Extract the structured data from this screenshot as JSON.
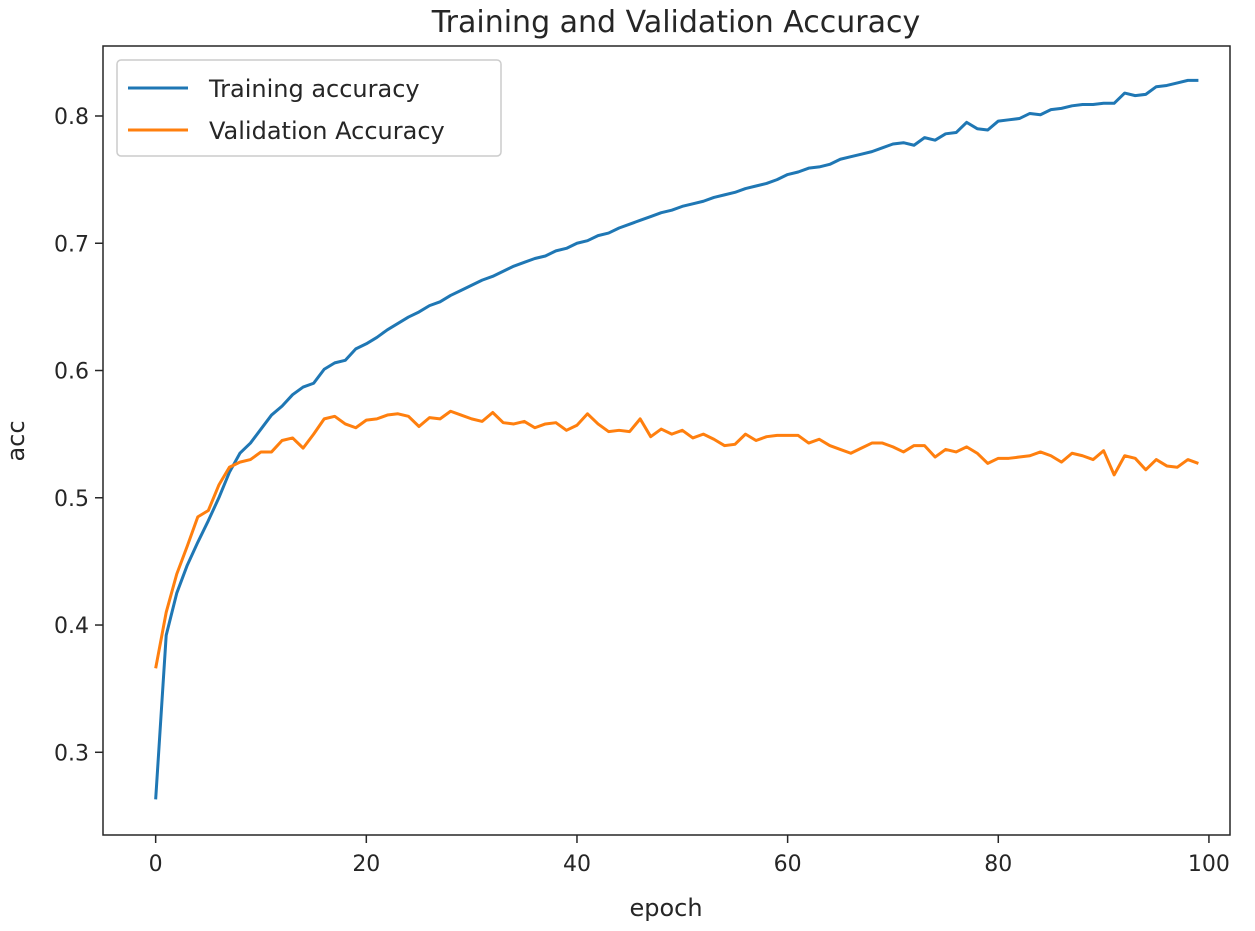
{
  "chart_data": {
    "type": "line",
    "title": "Training and Validation Accuracy",
    "xlabel": "epoch",
    "ylabel": "acc",
    "xlim": [
      -5,
      102
    ],
    "ylim": [
      0.235,
      0.855
    ],
    "xticks": [
      0,
      20,
      40,
      60,
      80,
      100
    ],
    "yticks": [
      0.3,
      0.4,
      0.5,
      0.6,
      0.7,
      0.8
    ],
    "xtick_labels": [
      "0",
      "20",
      "40",
      "60",
      "80",
      "100"
    ],
    "ytick_labels": [
      "0.3",
      "0.4",
      "0.5",
      "0.6",
      "0.7",
      "0.8"
    ],
    "grid": false,
    "legend_position": "upper-left",
    "x": [
      0,
      1,
      2,
      3,
      4,
      5,
      6,
      7,
      8,
      9,
      10,
      11,
      12,
      13,
      14,
      15,
      16,
      17,
      18,
      19,
      20,
      21,
      22,
      23,
      24,
      25,
      26,
      27,
      28,
      29,
      30,
      31,
      32,
      33,
      34,
      35,
      36,
      37,
      38,
      39,
      40,
      41,
      42,
      43,
      44,
      45,
      46,
      47,
      48,
      49,
      50,
      51,
      52,
      53,
      54,
      55,
      56,
      57,
      58,
      59,
      60,
      61,
      62,
      63,
      64,
      65,
      66,
      67,
      68,
      69,
      70,
      71,
      72,
      73,
      74,
      75,
      76,
      77,
      78,
      79,
      80,
      81,
      82,
      83,
      84,
      85,
      86,
      87,
      88,
      89,
      90,
      91,
      92,
      93,
      94,
      95,
      96,
      97,
      98,
      99
    ],
    "series": [
      {
        "name": "Training accuracy",
        "color": "#1f77b4",
        "values": [
          0.263,
          0.392,
          0.425,
          0.447,
          0.465,
          0.482,
          0.5,
          0.52,
          0.535,
          0.543,
          0.554,
          0.565,
          0.572,
          0.581,
          0.587,
          0.59,
          0.601,
          0.606,
          0.608,
          0.617,
          0.621,
          0.626,
          0.632,
          0.637,
          0.642,
          0.646,
          0.651,
          0.654,
          0.659,
          0.663,
          0.667,
          0.671,
          0.674,
          0.678,
          0.682,
          0.685,
          0.688,
          0.69,
          0.694,
          0.696,
          0.7,
          0.702,
          0.706,
          0.708,
          0.712,
          0.715,
          0.718,
          0.721,
          0.724,
          0.726,
          0.729,
          0.731,
          0.733,
          0.736,
          0.738,
          0.74,
          0.743,
          0.745,
          0.747,
          0.75,
          0.754,
          0.756,
          0.759,
          0.76,
          0.762,
          0.766,
          0.768,
          0.77,
          0.772,
          0.775,
          0.778,
          0.779,
          0.777,
          0.783,
          0.781,
          0.786,
          0.787,
          0.795,
          0.79,
          0.789,
          0.796,
          0.797,
          0.798,
          0.802,
          0.801,
          0.805,
          0.806,
          0.808,
          0.809,
          0.809,
          0.81,
          0.81,
          0.818,
          0.816,
          0.817,
          0.823,
          0.824,
          0.826,
          0.828,
          0.828
        ]
      },
      {
        "name": "Validation Accuracy",
        "color": "#ff7f0e",
        "values": [
          0.366,
          0.41,
          0.44,
          0.462,
          0.485,
          0.49,
          0.51,
          0.524,
          0.528,
          0.53,
          0.536,
          0.536,
          0.545,
          0.547,
          0.539,
          0.55,
          0.562,
          0.564,
          0.558,
          0.555,
          0.561,
          0.562,
          0.565,
          0.566,
          0.564,
          0.556,
          0.563,
          0.562,
          0.568,
          0.565,
          0.562,
          0.56,
          0.567,
          0.559,
          0.558,
          0.56,
          0.555,
          0.558,
          0.559,
          0.553,
          0.557,
          0.566,
          0.558,
          0.552,
          0.553,
          0.552,
          0.562,
          0.548,
          0.554,
          0.55,
          0.553,
          0.547,
          0.55,
          0.546,
          0.541,
          0.542,
          0.55,
          0.545,
          0.548,
          0.549,
          0.549,
          0.549,
          0.543,
          0.546,
          0.541,
          0.538,
          0.535,
          0.539,
          0.543,
          0.543,
          0.54,
          0.536,
          0.541,
          0.541,
          0.532,
          0.538,
          0.536,
          0.54,
          0.535,
          0.527,
          0.531,
          0.531,
          0.532,
          0.533,
          0.536,
          0.533,
          0.528,
          0.535,
          0.533,
          0.53,
          0.537,
          0.518,
          0.533,
          0.531,
          0.522,
          0.53,
          0.525,
          0.524,
          0.53,
          0.527
        ]
      }
    ]
  }
}
